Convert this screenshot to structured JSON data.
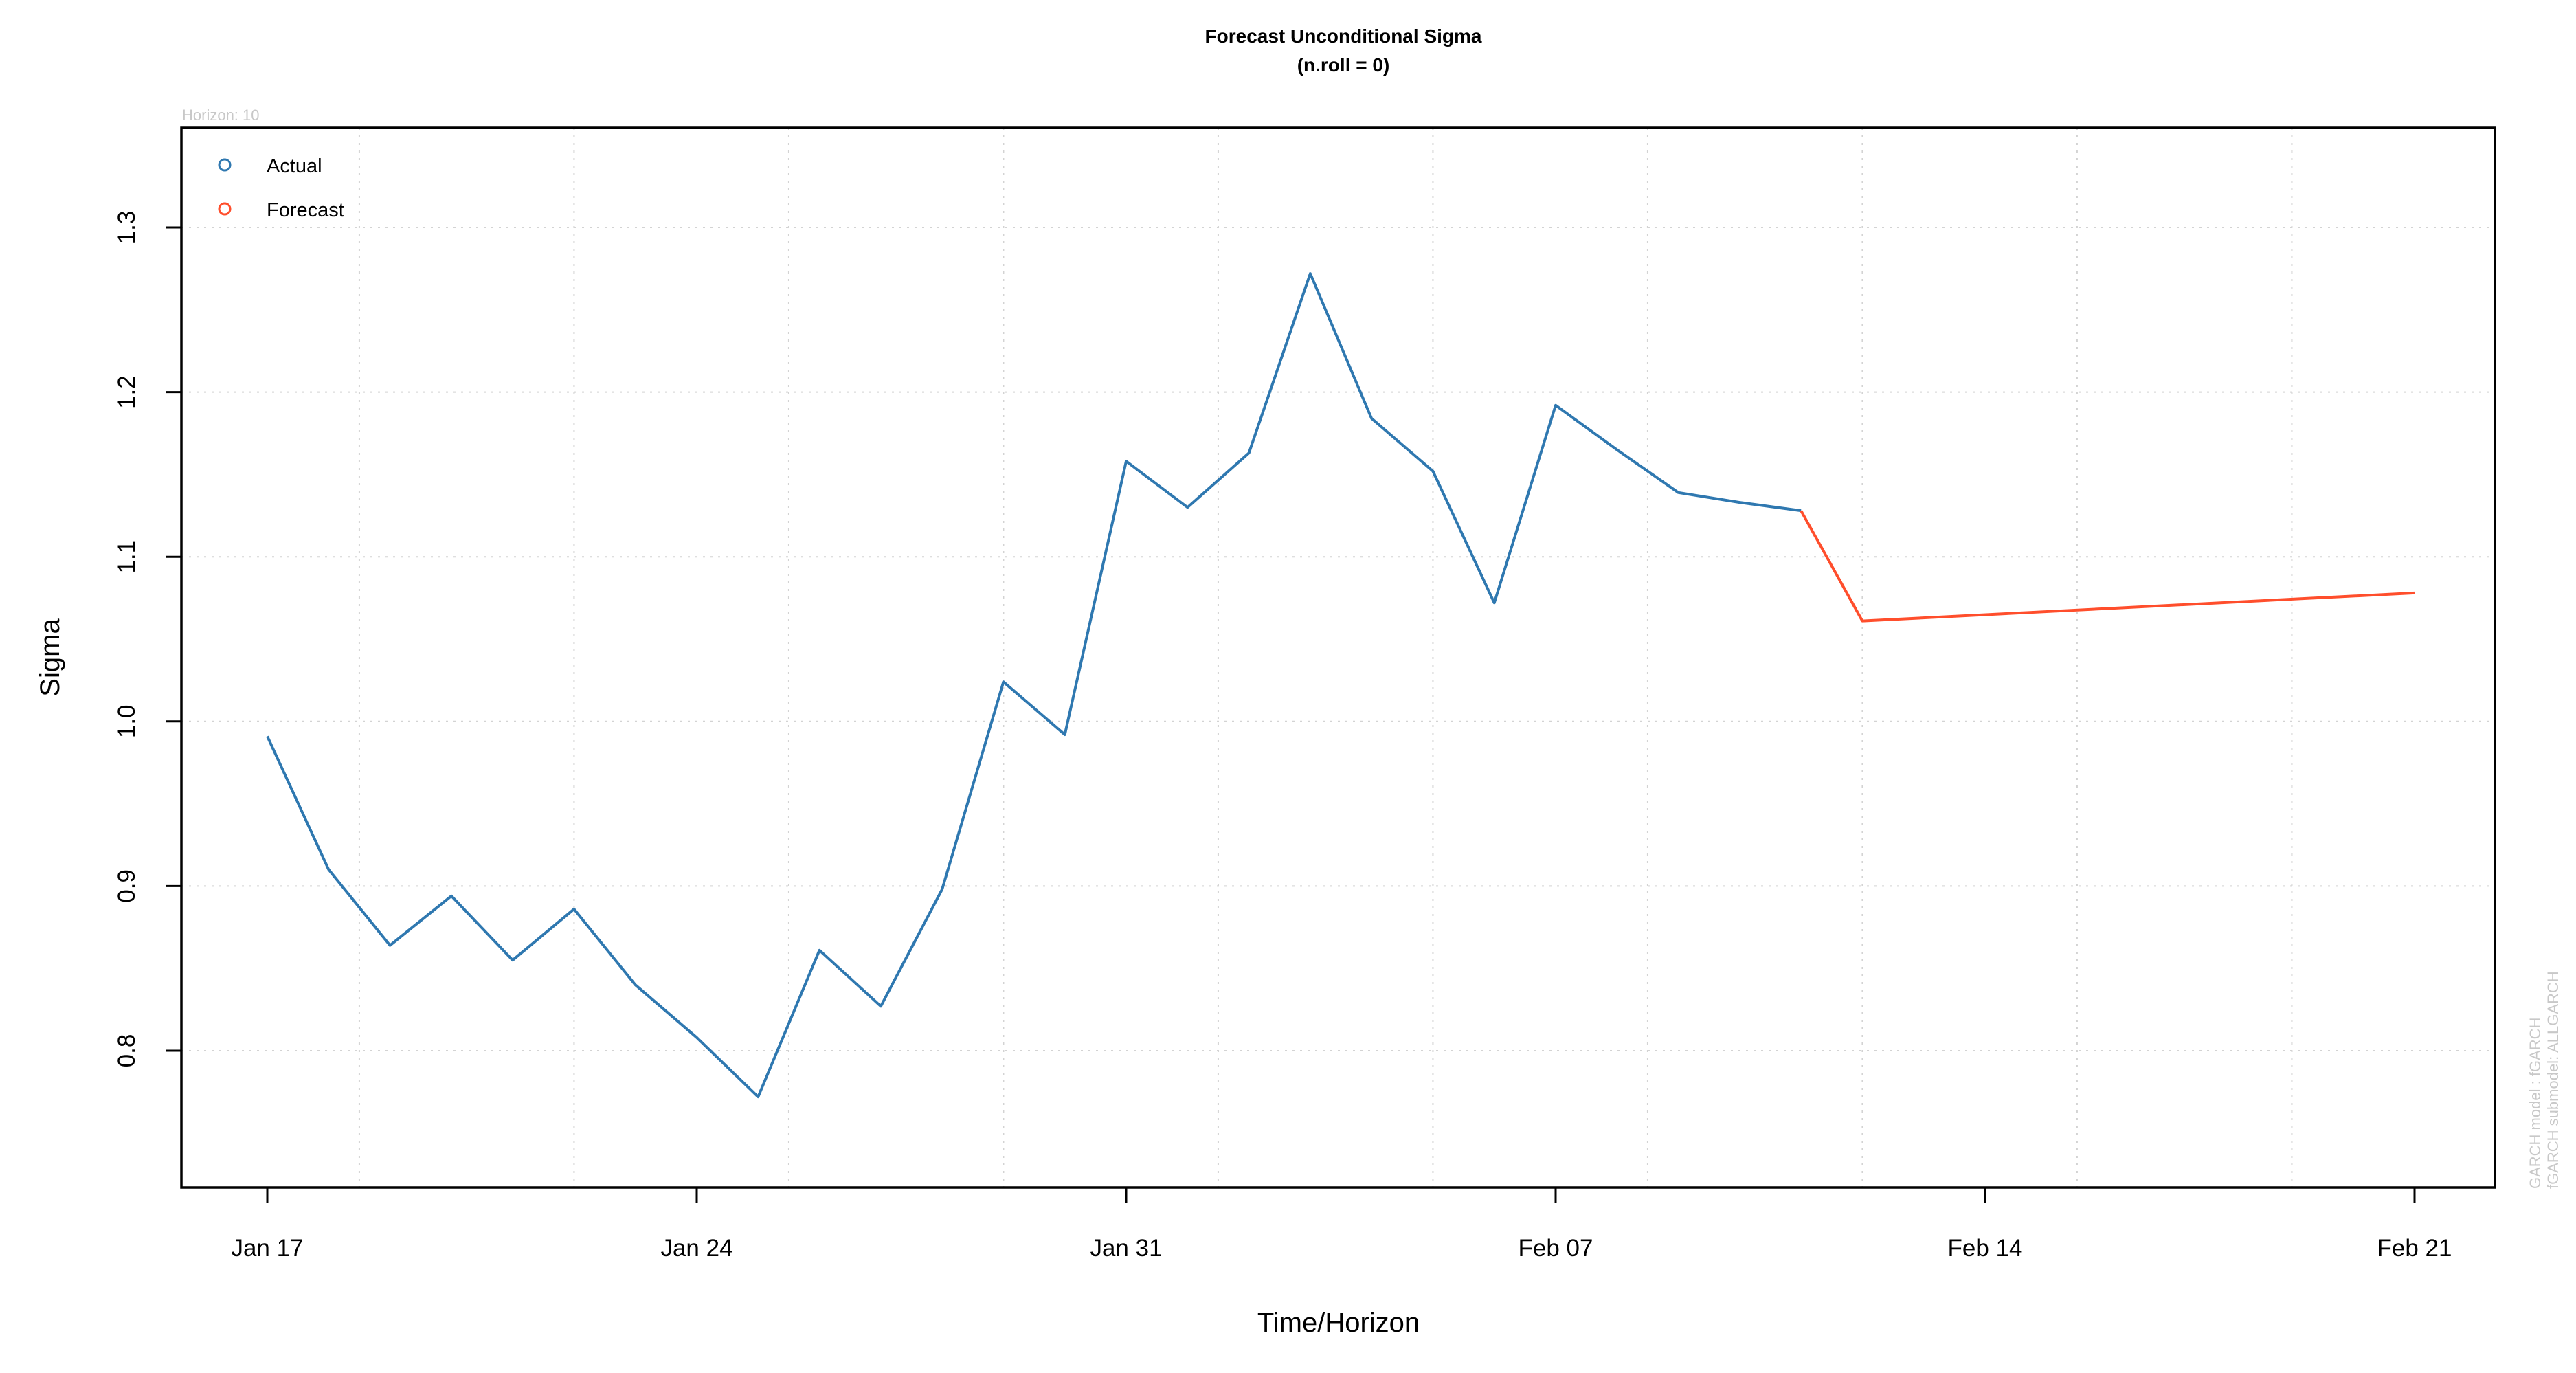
{
  "chart_data": {
    "type": "line",
    "title": "Forecast Unconditional Sigma",
    "subtitle": "(n.roll = 0)",
    "xlabel": "Time/Horizon",
    "ylabel": "Sigma",
    "note_top_left": "Horizon: 10",
    "note_right": [
      "GARCH model :  fGARCH",
      "fGARCH submodel:  ALLGARCH"
    ],
    "x_type": "date",
    "xlim": [
      "2022-01-15",
      "2022-02-21"
    ],
    "ylim": [
      0.71,
      1.36
    ],
    "x_ticks": [
      "2022-01-17",
      "2022-01-24",
      "2022-01-31",
      "2022-02-07",
      "2022-02-14",
      "2022-02-21"
    ],
    "x_tick_labels": [
      "Jan 17",
      "Jan 24",
      "Jan 31",
      "Feb 07",
      "Feb 14",
      "Feb 21"
    ],
    "y_ticks": [
      0.8,
      0.9,
      1.0,
      1.1,
      1.2,
      1.3
    ],
    "y_tick_labels": [
      "0.8",
      "0.9",
      "1.0",
      "1.1",
      "1.2",
      "1.3"
    ],
    "grid": true,
    "legend": {
      "position": "top-left",
      "entries": [
        {
          "label": "Actual",
          "color": "#2F78B0"
        },
        {
          "label": "Forecast",
          "color": "#FF4E2C"
        }
      ]
    },
    "series": [
      {
        "name": "Actual",
        "color": "#2F78B0",
        "points": [
          {
            "x": "2022-01-17",
            "y": 0.991
          },
          {
            "x": "2022-01-18",
            "y": 0.91
          },
          {
            "x": "2022-01-19",
            "y": 0.864
          },
          {
            "x": "2022-01-20",
            "y": 0.894
          },
          {
            "x": "2022-01-21",
            "y": 0.855
          },
          {
            "x": "2022-01-22",
            "y": 0.886
          },
          {
            "x": "2022-01-23",
            "y": 0.84
          },
          {
            "x": "2022-01-24",
            "y": 0.808
          },
          {
            "x": "2022-01-25",
            "y": 0.772
          },
          {
            "x": "2022-01-26",
            "y": 0.861
          },
          {
            "x": "2022-01-27",
            "y": 0.827
          },
          {
            "x": "2022-01-28",
            "y": 0.898
          },
          {
            "x": "2022-01-29",
            "y": 1.024
          },
          {
            "x": "2022-01-30",
            "y": 0.992
          },
          {
            "x": "2022-01-31",
            "y": 1.158
          },
          {
            "x": "2022-02-01",
            "y": 1.13
          },
          {
            "x": "2022-02-02",
            "y": 1.163
          },
          {
            "x": "2022-02-03",
            "y": 1.272
          },
          {
            "x": "2022-02-04",
            "y": 1.184
          },
          {
            "x": "2022-02-05",
            "y": 1.152
          },
          {
            "x": "2022-02-06",
            "y": 1.072
          },
          {
            "x": "2022-02-07",
            "y": 1.192
          },
          {
            "x": "2022-02-08",
            "y": 1.165
          },
          {
            "x": "2022-02-09",
            "y": 1.139
          },
          {
            "x": "2022-02-10",
            "y": 1.133
          },
          {
            "x": "2022-02-11",
            "y": 1.128
          }
        ]
      },
      {
        "name": "Forecast",
        "color": "#FF4E2C",
        "points": [
          {
            "x": "2022-02-11",
            "y": 1.128
          },
          {
            "x": "2022-02-12",
            "y": 1.061
          },
          {
            "x": "2022-02-21",
            "y": 1.078
          }
        ]
      }
    ]
  }
}
